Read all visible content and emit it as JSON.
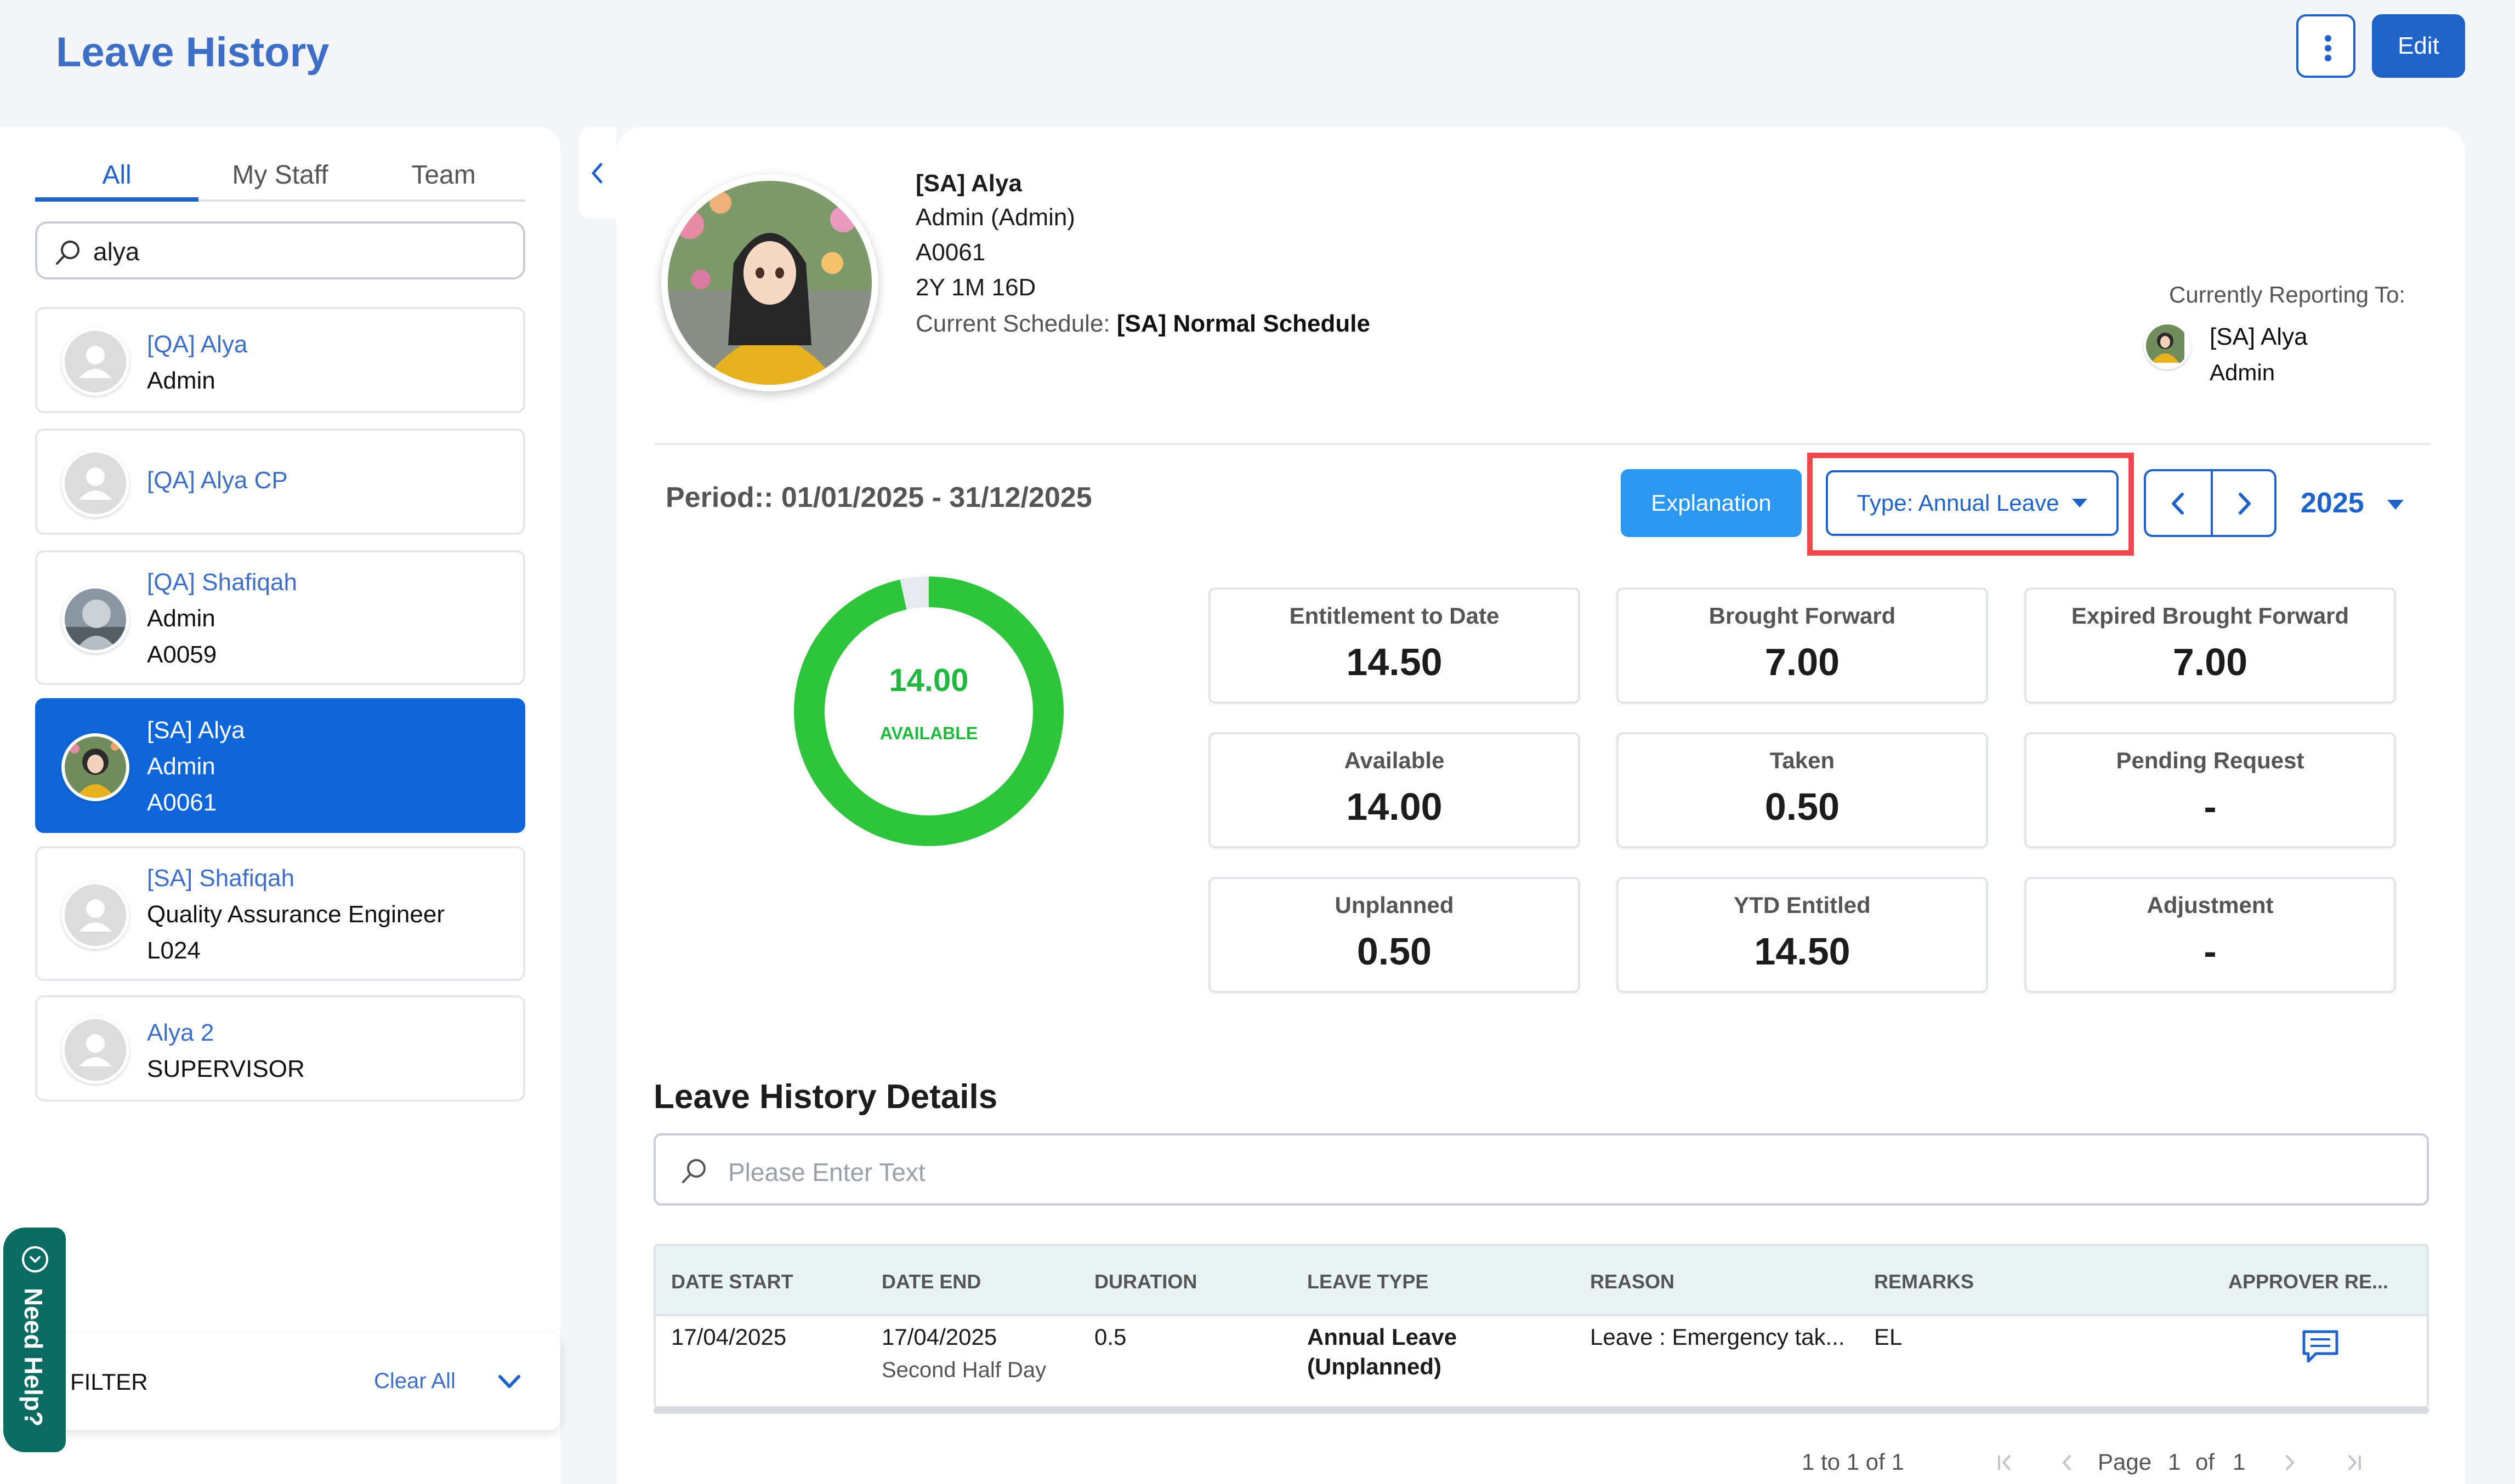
{
  "header": {
    "title": "Leave History",
    "edit_label": "Edit"
  },
  "left": {
    "tabs": [
      {
        "label": "All"
      },
      {
        "label": "My Staff"
      },
      {
        "label": "Team"
      }
    ],
    "search_value": "alya",
    "employees": [
      {
        "name": "[QA] Alya",
        "lines": [
          "Admin"
        ]
      },
      {
        "name": "[QA] Alya CP",
        "lines": []
      },
      {
        "name": "[QA] Shafiqah",
        "lines": [
          "Admin",
          "A0059"
        ]
      },
      {
        "name": "[SA] Alya",
        "lines": [
          "Admin",
          "A0061"
        ]
      },
      {
        "name": "[SA] Shafiqah",
        "lines": [
          "Quality Assurance Engineer",
          "L024"
        ]
      },
      {
        "name": "Alya 2",
        "lines": [
          "SUPERVISOR"
        ]
      }
    ],
    "filter_label": "FILTER",
    "clear_all": "Clear All",
    "need_help": "Need Help?"
  },
  "profile": {
    "name": "[SA] Alya",
    "role": "Admin (Admin)",
    "id": "A0061",
    "tenure": "2Y 1M 16D",
    "schedule_label": "Current Schedule:",
    "schedule_value": "[SA] Normal Schedule",
    "reporting_label": "Currently Reporting To:",
    "reporting_name": "[SA] Alya",
    "reporting_role": "Admin"
  },
  "controls": {
    "period": "Period:: 01/01/2025 - 31/12/2025",
    "explanation_label": "Explanation",
    "type_label": "Type: Annual Leave",
    "year": "2025"
  },
  "donut": {
    "value": "14.00",
    "label": "AVAILABLE",
    "available": 14.0,
    "total": 14.5,
    "color": "#2ec53c",
    "rest_color": "#e6e9ee"
  },
  "stats": [
    {
      "label": "Entitlement to Date",
      "value": "14.50"
    },
    {
      "label": "Brought Forward",
      "value": "7.00"
    },
    {
      "label": "Expired Brought Forward",
      "value": "7.00"
    },
    {
      "label": "Available",
      "value": "14.00"
    },
    {
      "label": "Taken",
      "value": "0.50"
    },
    {
      "label": "Pending Request",
      "value": "-"
    },
    {
      "label": "Unplanned",
      "value": "0.50"
    },
    {
      "label": "YTD Entitled",
      "value": "14.50"
    },
    {
      "label": "Adjustment",
      "value": "-"
    }
  ],
  "details": {
    "title": "Leave History Details",
    "search_placeholder": "Please Enter Text",
    "columns": [
      "DATE START",
      "DATE END",
      "DURATION",
      "LEAVE TYPE",
      "REASON",
      "REMARKS",
      "APPROVER RE..."
    ],
    "rows": [
      {
        "date_start": "17/04/2025",
        "date_end": "17/04/2025",
        "date_end_sub": "Second Half Day",
        "duration": "0.5",
        "leave_type_1": "Annual Leave",
        "leave_type_2": "(Unplanned)",
        "reason": "Leave : Emergency tak...",
        "remarks": "EL"
      }
    ],
    "pager": {
      "range": "1 to 1 of 1",
      "page_label": "Page",
      "page": "1",
      "of_label": "of",
      "total": "1"
    }
  }
}
